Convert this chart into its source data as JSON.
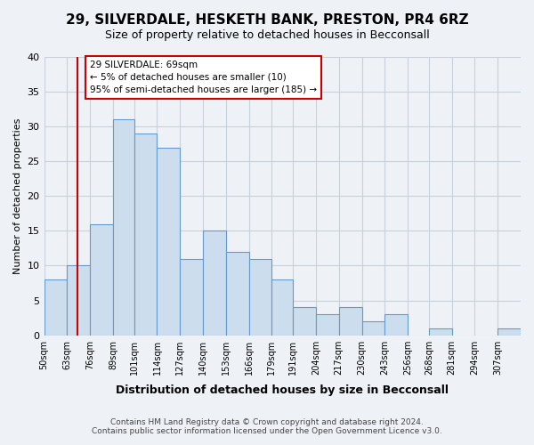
{
  "title": "29, SILVERDALE, HESKETH BANK, PRESTON, PR4 6RZ",
  "subtitle": "Size of property relative to detached houses in Becconsall",
  "xlabel": "Distribution of detached houses by size in Becconsall",
  "ylabel": "Number of detached properties",
  "bin_edges": [
    50,
    63,
    76,
    89,
    101,
    114,
    127,
    140,
    153,
    166,
    179,
    191,
    204,
    217,
    230,
    243,
    256,
    268,
    281,
    294,
    307,
    320
  ],
  "bin_labels": [
    "50sqm",
    "63sqm",
    "76sqm",
    "89sqm",
    "101sqm",
    "114sqm",
    "127sqm",
    "140sqm",
    "153sqm",
    "166sqm",
    "179sqm",
    "191sqm",
    "204sqm",
    "217sqm",
    "230sqm",
    "243sqm",
    "256sqm",
    "268sqm",
    "281sqm",
    "294sqm",
    "307sqm"
  ],
  "bar_heights": [
    8,
    10,
    16,
    31,
    29,
    27,
    11,
    15,
    12,
    11,
    8,
    4,
    3,
    4,
    2,
    3,
    0,
    1,
    0,
    0,
    1
  ],
  "bar_color": "#ccdded",
  "bar_edge_color": "#6699cc",
  "vline_position": 69,
  "vline_color": "#cc0000",
  "annotation_title": "29 SILVERDALE: 69sqm",
  "annotation_line1": "← 5% of detached houses are smaller (10)",
  "annotation_line2": "95% of semi-detached houses are larger (185) →",
  "annotation_box_color": "#ffffff",
  "annotation_box_edge": "#cc0000",
  "ylim": [
    0,
    40
  ],
  "yticks": [
    0,
    5,
    10,
    15,
    20,
    25,
    30,
    35,
    40
  ],
  "footer1": "Contains HM Land Registry data © Crown copyright and database right 2024.",
  "footer2": "Contains public sector information licensed under the Open Government Licence v3.0.",
  "bg_color": "#eef2f7",
  "plot_bg_color": "#eef2f7",
  "grid_color": "#c8d0dc"
}
